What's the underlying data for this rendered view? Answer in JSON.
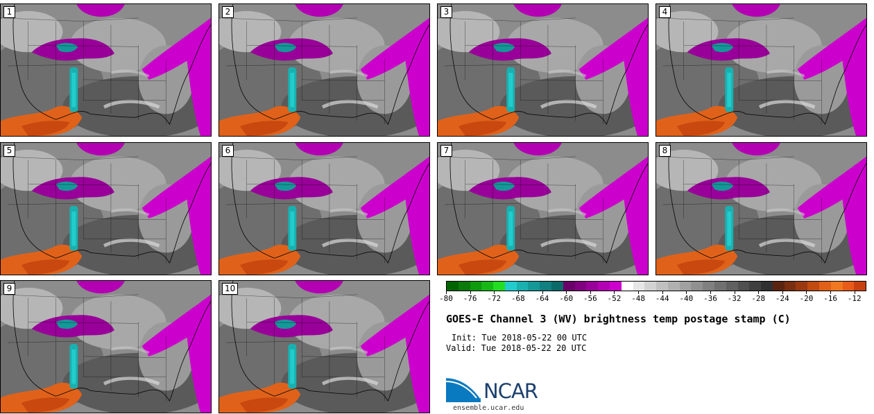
{
  "chart_data": {
    "type": "heatmap",
    "title": "GOES-E Channel 3 (WV) brightness temp postage stamp (C)",
    "init": "Init: Tue 2018-05-22 00 UTC",
    "valid": "Valid: Tue 2018-05-22 20 UTC",
    "panels": [
      "1",
      "2",
      "3",
      "4",
      "5",
      "6",
      "7",
      "8",
      "9",
      "10"
    ],
    "colorbar": {
      "range": [
        -80,
        -10
      ],
      "step": 2,
      "ticks": [
        "-80",
        "-76",
        "-72",
        "-68",
        "-64",
        "-60",
        "-56",
        "-52",
        "-48",
        "-44",
        "-40",
        "-36",
        "-32",
        "-28",
        "-24",
        "-20",
        "-16",
        "-12"
      ],
      "tick_values": [
        -80,
        -76,
        -72,
        -68,
        -64,
        -60,
        -56,
        -52,
        -48,
        -44,
        -40,
        -36,
        -32,
        -28,
        -24,
        -20,
        -16,
        -12
      ],
      "colors": [
        "#006400",
        "#0a7a0a",
        "#0d9a0d",
        "#16b816",
        "#22dd22",
        "#22cccc",
        "#1ab0b0",
        "#159898",
        "#108080",
        "#0a6a6a",
        "#6a006a",
        "#800080",
        "#990099",
        "#b300b3",
        "#cc00cc",
        "#ffffff",
        "#e6e6e6",
        "#d2d2d2",
        "#c0c0c0",
        "#b0b0b0",
        "#a0a0a0",
        "#909090",
        "#808080",
        "#707070",
        "#606060",
        "#505050",
        "#404040",
        "#303030",
        "#5a2410",
        "#7a2e10",
        "#9a3810",
        "#c04a10",
        "#e06018",
        "#f07820",
        "#e85a18",
        "#c84010"
      ]
    }
  },
  "logo": {
    "text": "NCAR",
    "url": "ensemble.ucar.edu"
  }
}
